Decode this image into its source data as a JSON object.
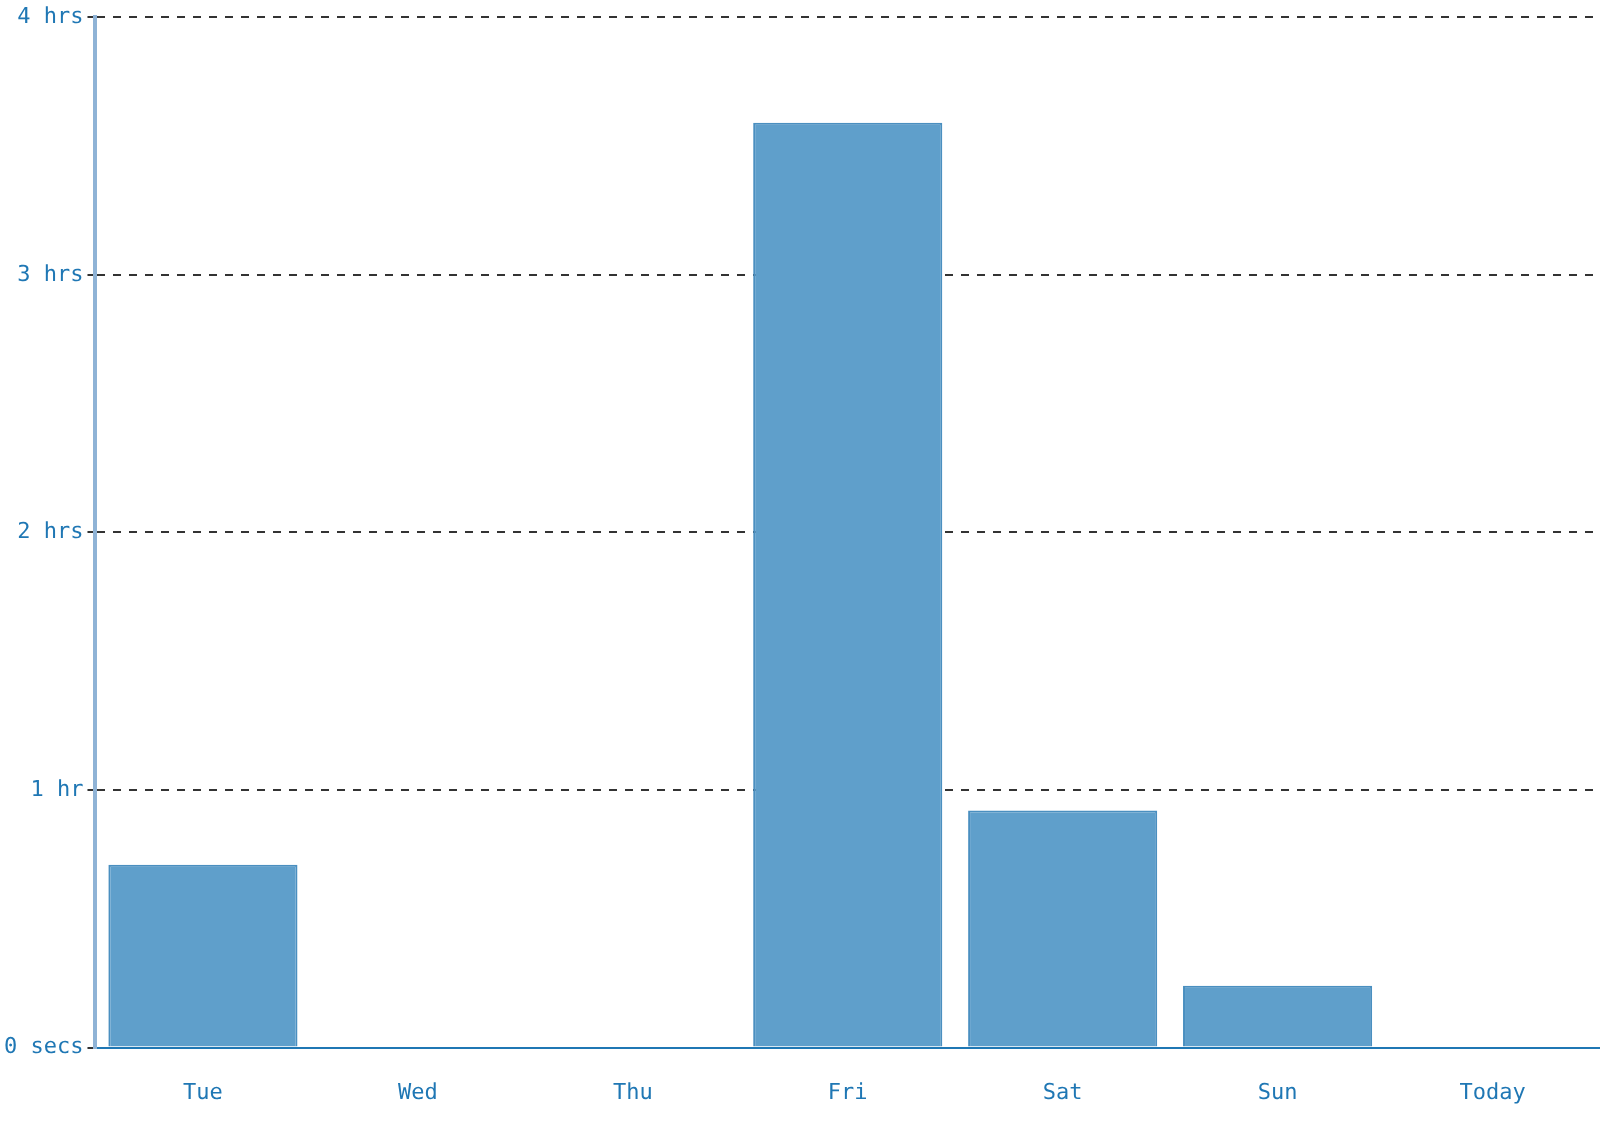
{
  "chart_data": {
    "type": "bar",
    "categories": [
      "Tue",
      "Wed",
      "Thu",
      "Fri",
      "Sat",
      "Sun",
      "Today"
    ],
    "values": [
      0.71,
      0,
      0,
      3.59,
      0.92,
      0.24,
      0
    ],
    "color": "#5f9fcb",
    "ylim": [
      0,
      4
    ],
    "yticks": [
      {
        "value": 0,
        "label": "0 secs"
      },
      {
        "value": 1,
        "label": "1 hr"
      },
      {
        "value": 2,
        "label": "2 hrs"
      },
      {
        "value": 3,
        "label": "3 hrs"
      },
      {
        "value": 4,
        "label": "4 hrs"
      }
    ],
    "grid": "y"
  }
}
